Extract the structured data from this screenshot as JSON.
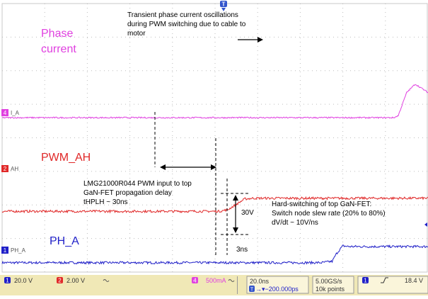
{
  "chart_data": {
    "type": "line",
    "title": "",
    "xlabel": "",
    "ylabel": "",
    "grid": true,
    "x_divisions": 10,
    "y_divisions": 8,
    "time_per_div_ns": 20.0,
    "series": [
      {
        "name": "PH_A",
        "channel": "1",
        "color": "#2020c8",
        "x": [
          0,
          7.5,
          7.75,
          7.85,
          8.0,
          8.15,
          8.4,
          10
        ],
        "y": [
          0.28,
          0.28,
          0.32,
          0.55,
          0.78,
          0.76,
          0.76,
          0.76
        ]
      },
      {
        "name": "PWM_AH",
        "channel": "2",
        "color": "#e02828",
        "x": [
          0,
          5.1,
          5.3,
          5.5,
          5.7,
          5.9,
          10
        ],
        "y": [
          1.81,
          1.81,
          1.86,
          2.02,
          2.18,
          2.2,
          2.2
        ]
      },
      {
        "name": "Phase current",
        "channel": "4",
        "color": "#e040e0",
        "x": [
          0,
          9.2,
          9.3,
          9.5,
          9.7,
          10
        ],
        "y": [
          4.6,
          4.6,
          4.66,
          5.35,
          5.6,
          5.35
        ]
      }
    ],
    "labels": {
      "phase_line1": "Phase",
      "phase_line2": "current",
      "pwm": "PWM_AH",
      "pha": "PH_A",
      "transient_note": [
        "Transient phase current oscillations",
        "during PWM switching due to cable to",
        "motor"
      ],
      "prop_note": [
        "LMG21000R044 PWM input to top",
        "GaN-FET propagation delay",
        "tHPLH ~ 30ns"
      ],
      "hard_note": [
        "Hard-switching of top GaN-FET:",
        "Switch node slew rate (20% to 80%)",
        "dV/dt ~ 10V/ns"
      ],
      "v30": "30V",
      "t3ns": "3ns"
    },
    "markers": {
      "ch4": {
        "num": "4",
        "text": "I_A",
        "color": "#e040e0"
      },
      "ch2": {
        "num": "2",
        "text": "AH",
        "color": "#e02828"
      },
      "ch1": {
        "num": "1",
        "text": "PH_A",
        "color": "#2020c8"
      },
      "trigger": "T"
    },
    "status_bar": {
      "ch1_num": "1",
      "ch1_scale": "20.0 V",
      "ch2_num": "2",
      "ch2_scale": "2.00 V",
      "ch4_num": "4",
      "ch4_scale": "500mA",
      "time_div": "20.0ns",
      "delay": "→▾−200.000ps",
      "delay_t": "T",
      "sample_rate": "5.00GS/s",
      "points": "10k points",
      "trig_ch": "1",
      "trig_level": "18.4 V"
    }
  }
}
